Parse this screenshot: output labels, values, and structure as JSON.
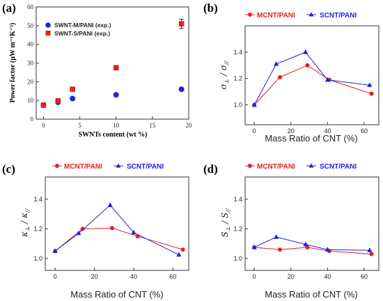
{
  "panels": [
    {
      "tag": "(a)",
      "chart_data": {
        "type": "scatter",
        "xlabel": "SWNTs content (wt %)",
        "ylabel": "Power factor (μW m⁻¹K⁻²)",
        "xlim": [
          -1,
          20
        ],
        "ylim": [
          0,
          60
        ],
        "xticks": [
          "0",
          "5",
          "10",
          "15",
          "20"
        ],
        "yticks": [
          "0",
          "10",
          "20",
          "30",
          "40",
          "50",
          "60"
        ],
        "series": [
          {
            "name": "SWNT-M/PANI (exp.)",
            "marker": "circle",
            "color": "#1f1fe6",
            "x": [
              0,
              2,
              4,
              10,
              19
            ],
            "y": [
              7.5,
              9,
              11,
              13,
              16
            ],
            "err": [
              0,
              0,
              0,
              0,
              0
            ]
          },
          {
            "name": "SWNT-S/PANI (exp.)",
            "marker": "square",
            "color": "#e32020",
            "x": [
              0,
              2,
              4,
              10,
              19
            ],
            "y": [
              7.5,
              9.8,
              16,
              27.5,
              51
            ],
            "err": [
              0,
              0,
              0.5,
              0.8,
              2.5
            ]
          }
        ]
      }
    },
    {
      "tag": "(b)",
      "chart_data": {
        "type": "line",
        "xlabel": "Mass Ratio of CNT (%)",
        "ylabel": "σ⊥ / σ//",
        "ylabel_main": "σ",
        "ylabel_sub1": "⊥",
        "ylabel_sub2": "//",
        "xlim": [
          -5,
          68
        ],
        "ylim": [
          0.85,
          1.6
        ],
        "xticks": [
          "0",
          "20",
          "40",
          "60"
        ],
        "yticks": [
          "1.0",
          "1.2",
          "1.4"
        ],
        "series": [
          {
            "name": "MCNT/PANI",
            "marker": "circle",
            "color": "#e32020",
            "x": [
              0,
              14,
              29,
              41,
              64
            ],
            "y": [
              1.0,
              1.21,
              1.3,
              1.19,
              1.085
            ]
          },
          {
            "name": "SCNT/PANI",
            "marker": "triangle",
            "color": "#2020e0",
            "x": [
              0,
              12,
              28,
              40,
              63
            ],
            "y": [
              1.0,
              1.31,
              1.4,
              1.19,
              1.15
            ]
          }
        ]
      }
    },
    {
      "tag": "(c)",
      "chart_data": {
        "type": "line",
        "xlabel": "Mass Ratio of CNT (%)",
        "ylabel": "κ⊥ / κ//",
        "ylabel_main": "κ",
        "ylabel_sub1": "⊥",
        "ylabel_sub2": "//",
        "xlim": [
          -5,
          68
        ],
        "ylim": [
          0.92,
          1.55
        ],
        "xticks": [
          "0",
          "20",
          "40",
          "60"
        ],
        "yticks": [
          "1.0",
          "1.2",
          "1.4"
        ],
        "series": [
          {
            "name": "MCNT/PANI",
            "marker": "circle",
            "color": "#e32020",
            "x": [
              0,
              14,
              29,
              42,
              65
            ],
            "y": [
              1.05,
              1.2,
              1.205,
              1.15,
              1.06
            ]
          },
          {
            "name": "SCNT/PANI",
            "marker": "triangle",
            "color": "#2020e0",
            "x": [
              0,
              12,
              28,
              40,
              63
            ],
            "y": [
              1.05,
              1.17,
              1.36,
              1.175,
              1.025
            ]
          }
        ]
      }
    },
    {
      "tag": "(d)",
      "chart_data": {
        "type": "line",
        "xlabel": "Mass Ratio of CNT (%)",
        "ylabel": "S⊥ / S//",
        "ylabel_main": "S",
        "ylabel_sub1": "⊥",
        "ylabel_sub2": "//",
        "xlim": [
          -5,
          68
        ],
        "ylim": [
          0.92,
          1.55
        ],
        "xticks": [
          "0",
          "20",
          "40",
          "60"
        ],
        "yticks": [
          "1.0",
          "1.2",
          "1.4"
        ],
        "series": [
          {
            "name": "MCNT/PANI",
            "marker": "circle",
            "color": "#e32020",
            "x": [
              0,
              14,
              29,
              41,
              64
            ],
            "y": [
              1.075,
              1.06,
              1.075,
              1.05,
              1.03
            ]
          },
          {
            "name": "SCNT/PANI",
            "marker": "triangle",
            "color": "#2020e0",
            "x": [
              0,
              12,
              28,
              40,
              63
            ],
            "y": [
              1.075,
              1.145,
              1.095,
              1.06,
              1.055
            ]
          }
        ]
      }
    }
  ]
}
